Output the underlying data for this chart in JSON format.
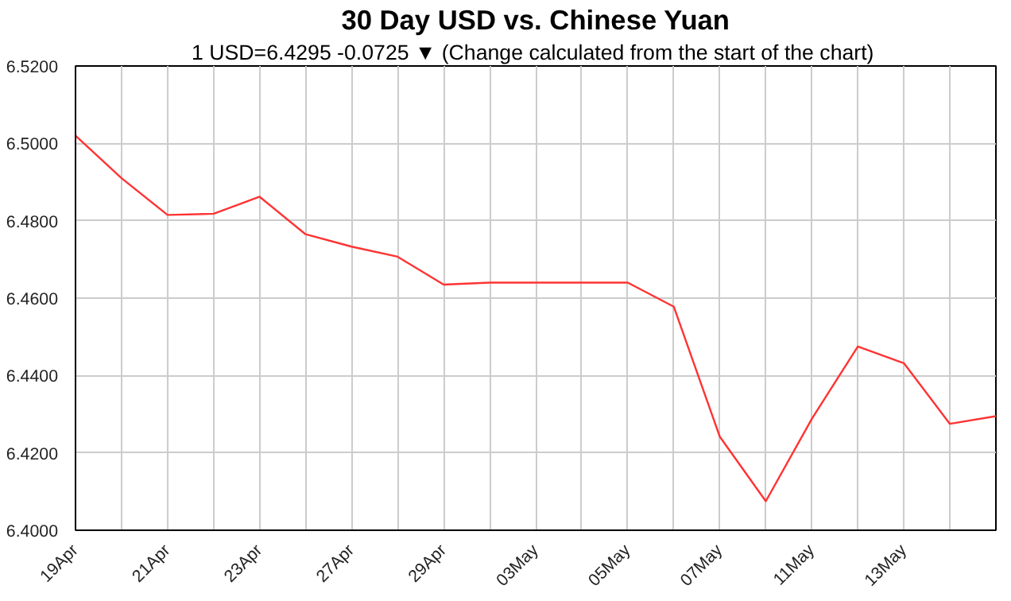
{
  "chart_data": {
    "type": "line",
    "title": "30 Day USD vs. Chinese Yuan",
    "subtitle": "1 USD=6.4295  -0.0725 ▼ (Change calculated from the start of the chart)",
    "categories": [
      "19Apr",
      null,
      "21Apr",
      null,
      "23Apr",
      null,
      "27Apr",
      null,
      "29Apr",
      null,
      "03May",
      null,
      "05May",
      null,
      "07May",
      null,
      "11May",
      null,
      "13May",
      null,
      null
    ],
    "series": [
      {
        "color": "#ff3333",
        "values": [
          6.502,
          6.491,
          6.4815,
          6.4818,
          6.4862,
          6.4765,
          6.4733,
          6.4707,
          6.4635,
          6.464,
          6.464,
          6.464,
          6.464,
          6.4578,
          6.4242,
          6.4075,
          6.4288,
          6.4475,
          6.4432,
          6.4275,
          6.4295
        ]
      }
    ],
    "ylim": [
      6.4,
      6.52
    ],
    "yticks": [
      {
        "value": 6.4,
        "label": "6.4000"
      },
      {
        "value": 6.42,
        "label": "6.4200"
      },
      {
        "value": 6.44,
        "label": "6.4400"
      },
      {
        "value": 6.46,
        "label": "6.4600"
      },
      {
        "value": 6.48,
        "label": "6.4800"
      },
      {
        "value": 6.5,
        "label": "6.5000"
      },
      {
        "value": 6.52,
        "label": "6.5200"
      }
    ],
    "grid": true,
    "marker": "none",
    "line_style": "solid"
  }
}
